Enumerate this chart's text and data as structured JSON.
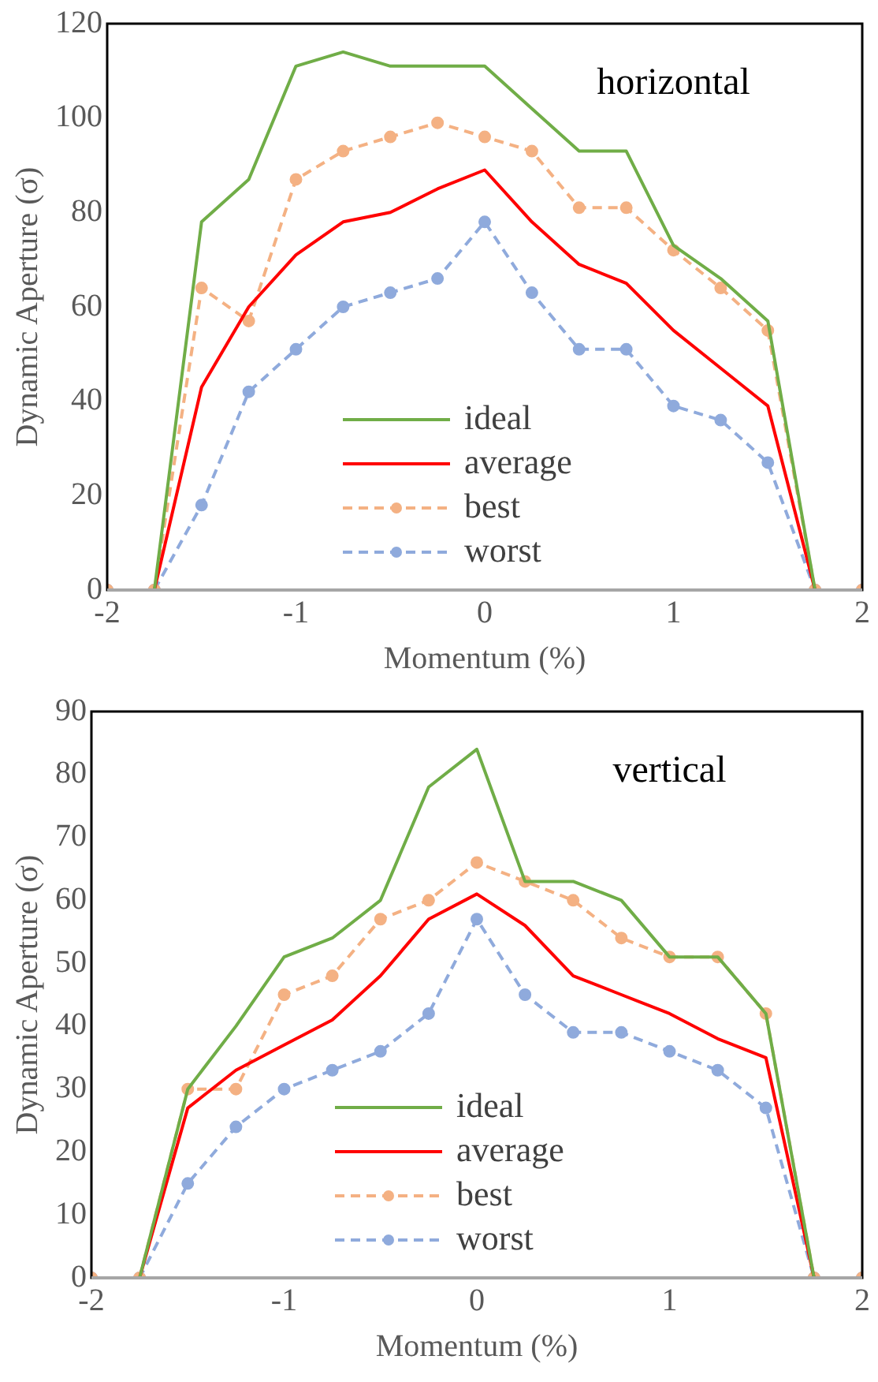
{
  "chart_data": [
    {
      "type": "line",
      "annotations": [
        "horizontal"
      ],
      "xlabel": "Momentum (%)",
      "ylabel": "Dynamic Aperture (σ)",
      "x": [
        -2,
        -1.75,
        -1.5,
        -1.25,
        -1,
        -0.75,
        -0.5,
        -0.25,
        0,
        0.25,
        0.5,
        0.75,
        1,
        1.25,
        1.5,
        1.75,
        2
      ],
      "xlim": [
        -2,
        2
      ],
      "xticks": [
        -2,
        -1,
        0,
        1,
        2
      ],
      "ylim": [
        0,
        120
      ],
      "yticks": [
        0,
        20,
        40,
        60,
        80,
        100,
        120
      ],
      "grid": false,
      "legend": "bottom",
      "series": [
        {
          "name": "ideal",
          "color": "#70ad47",
          "marker": "none",
          "line_style": "solid",
          "values": [
            0,
            0,
            78,
            87,
            111,
            114,
            111,
            111,
            111,
            102,
            93,
            93,
            73,
            66,
            57,
            0,
            0
          ]
        },
        {
          "name": "average",
          "color": "#ff0000",
          "marker": "none",
          "line_style": "solid",
          "values": [
            0,
            0,
            43,
            60,
            71,
            78,
            80,
            85,
            89,
            78,
            69,
            65,
            55,
            47,
            39,
            0,
            0
          ]
        },
        {
          "name": "best",
          "color": "#f4b183",
          "marker": "circle",
          "line_style": "dashed",
          "values": [
            0,
            0,
            64,
            57,
            87,
            93,
            96,
            99,
            96,
            93,
            81,
            81,
            72,
            64,
            55,
            0,
            0
          ]
        },
        {
          "name": "worst",
          "color": "#8faadc",
          "marker": "circle",
          "line_style": "dashed",
          "values": [
            0,
            0,
            18,
            42,
            51,
            60,
            63,
            66,
            78,
            63,
            51,
            51,
            39,
            36,
            27,
            0,
            0
          ]
        }
      ]
    },
    {
      "type": "line",
      "annotations": [
        "vertical"
      ],
      "xlabel": "Momentum (%)",
      "ylabel": "Dynamic Aperture (σ)",
      "x": [
        -2,
        -1.75,
        -1.5,
        -1.25,
        -1,
        -0.75,
        -0.5,
        -0.25,
        0,
        0.25,
        0.5,
        0.75,
        1,
        1.25,
        1.5,
        1.75,
        2
      ],
      "xlim": [
        -2,
        2
      ],
      "xticks": [
        -2,
        -1,
        0,
        1,
        2
      ],
      "ylim": [
        0,
        90
      ],
      "yticks": [
        0,
        10,
        20,
        30,
        40,
        50,
        60,
        70,
        80,
        90
      ],
      "grid": false,
      "legend": "bottom",
      "series": [
        {
          "name": "ideal",
          "color": "#70ad47",
          "marker": "none",
          "line_style": "solid",
          "values": [
            0,
            0,
            30,
            40,
            51,
            54,
            60,
            78,
            84,
            63,
            63,
            60,
            51,
            51,
            42,
            0,
            0
          ]
        },
        {
          "name": "average",
          "color": "#ff0000",
          "marker": "none",
          "line_style": "solid",
          "values": [
            0,
            0,
            27,
            33,
            37,
            41,
            48,
            57,
            61,
            56,
            48,
            45,
            42,
            38,
            35,
            0,
            0
          ]
        },
        {
          "name": "best",
          "color": "#f4b183",
          "marker": "circle",
          "line_style": "dashed",
          "values": [
            0,
            0,
            30,
            30,
            45,
            48,
            57,
            60,
            66,
            63,
            60,
            54,
            51,
            51,
            42,
            0,
            0
          ]
        },
        {
          "name": "worst",
          "color": "#8faadc",
          "marker": "circle",
          "line_style": "dashed",
          "values": [
            0,
            0,
            15,
            24,
            30,
            33,
            36,
            42,
            57,
            45,
            39,
            39,
            36,
            33,
            27,
            0,
            0
          ]
        }
      ]
    }
  ]
}
